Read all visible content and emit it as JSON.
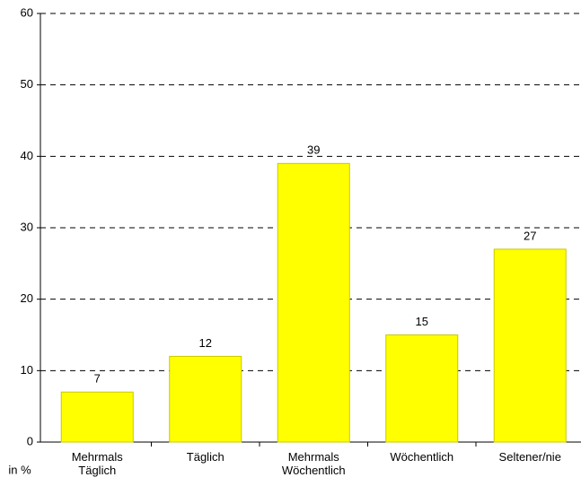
{
  "chart_data": {
    "type": "bar",
    "categories": [
      "Mehrmals Täglich",
      "Täglich",
      "Mehrmals Wöchentlich",
      "Wöchentlich",
      "Seltener/nie"
    ],
    "values": [
      7,
      12,
      39,
      15,
      27
    ],
    "color": "#ffff00",
    "ylim": [
      0,
      60
    ],
    "yticks": [
      0,
      10,
      20,
      30,
      40,
      50,
      60
    ],
    "grid": true,
    "y_label": "in %"
  }
}
